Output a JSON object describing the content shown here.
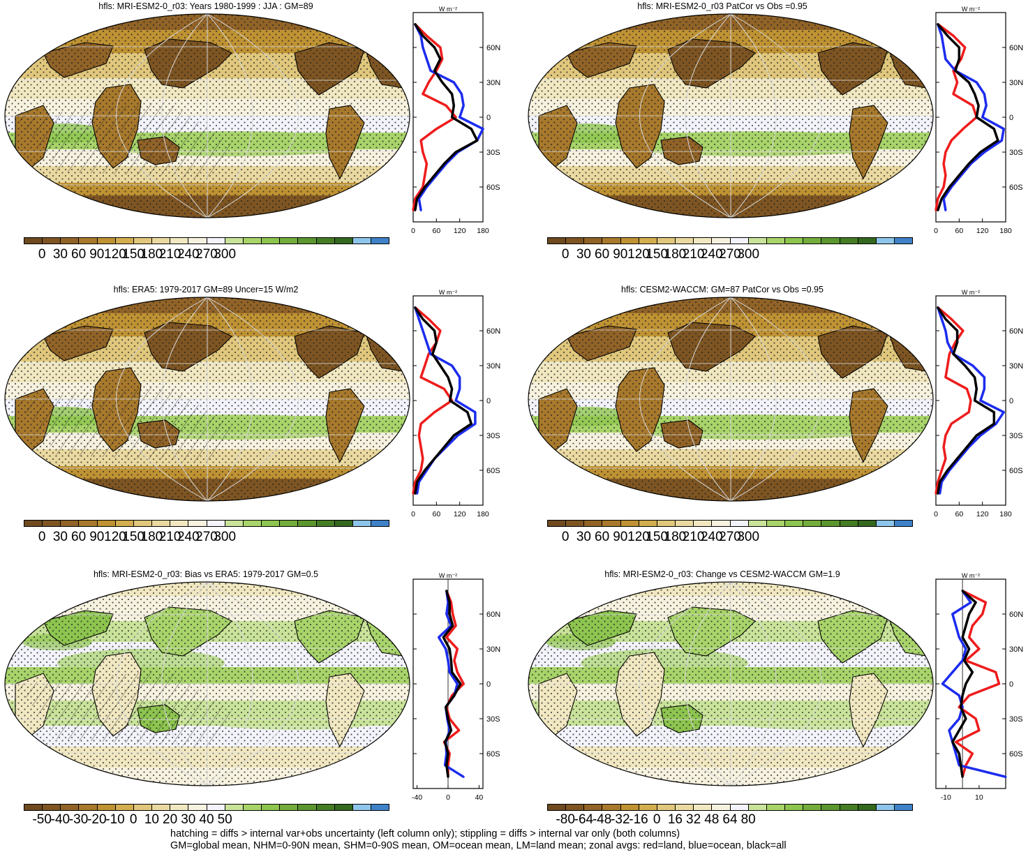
{
  "footer": {
    "line1": "hatching = diffs > internal var+obs uncertainty (left column only); stippling = diffs > internal var only (both columns)",
    "line2": "GM=global mean, NHM=0-90N mean, SHM=0-90S mean, OM=ocean mean, LM=land mean; zonal avgs: red=land, blue=ocean, black=all"
  },
  "colors": {
    "abs_scale": [
      "#6e4a1e",
      "#7e5522",
      "#916327",
      "#a8792c",
      "#bf9233",
      "#d3ae50",
      "#e0c77c",
      "#ead9a0",
      "#f1e8c1",
      "#f7f2df",
      "#f3f3fb",
      "#c9e39a",
      "#a8d46a",
      "#8dc54f",
      "#74ad3c",
      "#5c962f",
      "#457d25",
      "#34681e",
      "#8ec5ea",
      "#3f82c8"
    ],
    "land": "#ee1c1c",
    "ocean": "#1c2cee",
    "all": "#000000"
  },
  "chart_data": [
    {
      "type": "heatmap",
      "title": "hfls: MRI-ESM2-0_r03: Years 1980-1999 : JJA : GM=89",
      "colorbar_ticks": [
        "0",
        "30",
        "60",
        "90",
        "120",
        "150",
        "180",
        "210",
        "240",
        "270",
        "300"
      ],
      "zonal": {
        "unit": "W m⁻²",
        "xticks": [
          "0",
          "60",
          "120",
          "180"
        ],
        "xlim": [
          0,
          180
        ],
        "yticks": [
          "60N",
          "30N",
          "0",
          "30S",
          "60S"
        ],
        "ylim": [
          -90,
          90
        ],
        "lat": [
          80,
          70,
          60,
          50,
          40,
          30,
          20,
          10,
          0,
          -10,
          -20,
          -30,
          -40,
          -50,
          -60,
          -70,
          -80
        ],
        "land": [
          5,
          35,
          70,
          75,
          60,
          40,
          25,
          85,
          110,
          60,
          20,
          25,
          35,
          30,
          25,
          5,
          0
        ],
        "ocean": [
          5,
          20,
          25,
          35,
          45,
          105,
          125,
          130,
          120,
          180,
          165,
          115,
          85,
          60,
          35,
          15,
          20
        ],
        "all": [
          5,
          25,
          55,
          70,
          55,
          75,
          100,
          105,
          100,
          150,
          165,
          110,
          80,
          55,
          30,
          10,
          5
        ]
      }
    },
    {
      "type": "heatmap",
      "title": "hfls: MRI-ESM2-0_r03 PatCor vs Obs =0.95",
      "colorbar_ticks": [
        "0",
        "30",
        "60",
        "90",
        "120",
        "150",
        "180",
        "210",
        "240",
        "270",
        "300"
      ],
      "zonal": {
        "unit": "W m⁻²",
        "xticks": [
          "0",
          "60",
          "120",
          "180"
        ],
        "xlim": [
          0,
          180
        ],
        "yticks": [
          "60N",
          "30N",
          "0",
          "30S",
          "60S"
        ],
        "ylim": [
          -90,
          90
        ],
        "lat": [
          80,
          70,
          60,
          50,
          40,
          30,
          20,
          10,
          0,
          -10,
          -20,
          -30,
          -40,
          -50,
          -60,
          -70,
          -80
        ],
        "land": [
          5,
          45,
          75,
          65,
          45,
          55,
          45,
          95,
          105,
          70,
          40,
          25,
          20,
          25,
          20,
          5,
          0
        ],
        "ocean": [
          5,
          15,
          20,
          25,
          50,
          105,
          125,
          130,
          120,
          175,
          170,
          125,
          90,
          65,
          40,
          20,
          25
        ],
        "all": [
          5,
          30,
          60,
          60,
          50,
          85,
          100,
          110,
          105,
          150,
          160,
          115,
          85,
          60,
          35,
          15,
          5
        ]
      }
    },
    {
      "type": "heatmap",
      "title": "hfls: ERA5: 1979-2017 GM=89 Uncer=15 W/m2",
      "colorbar_ticks": [
        "0",
        "30",
        "60",
        "90",
        "120",
        "150",
        "180",
        "210",
        "240",
        "270",
        "300"
      ],
      "zonal": {
        "unit": "W m⁻²",
        "xticks": [
          "0",
          "60",
          "120",
          "180"
        ],
        "xlim": [
          0,
          180
        ],
        "yticks": [
          "60N",
          "30N",
          "0",
          "30S",
          "60S"
        ],
        "ylim": [
          -90,
          90
        ],
        "lat": [
          80,
          70,
          60,
          50,
          40,
          30,
          20,
          10,
          0,
          -10,
          -20,
          -30,
          -40,
          -50,
          -60,
          -70,
          -80
        ],
        "land": [
          5,
          40,
          70,
          60,
          40,
          30,
          20,
          80,
          100,
          55,
          20,
          15,
          20,
          25,
          20,
          5,
          0
        ],
        "ocean": [
          5,
          15,
          25,
          35,
          45,
          100,
          120,
          120,
          110,
          160,
          160,
          115,
          85,
          55,
          35,
          15,
          10
        ],
        "all": [
          5,
          25,
          55,
          60,
          50,
          70,
          90,
          100,
          95,
          140,
          150,
          105,
          80,
          55,
          30,
          10,
          5
        ]
      }
    },
    {
      "type": "heatmap",
      "title": "hfls: CESM2-WACCM: GM=87 PatCor vs Obs =0.95",
      "colorbar_ticks": [
        "0",
        "30",
        "60",
        "90",
        "120",
        "150",
        "180",
        "210",
        "240",
        "270",
        "300"
      ],
      "zonal": {
        "unit": "W m⁻²",
        "xticks": [
          "0",
          "60",
          "120",
          "180"
        ],
        "xlim": [
          0,
          180
        ],
        "yticks": [
          "60N",
          "30N",
          "0",
          "30S",
          "60S"
        ],
        "ylim": [
          -90,
          90
        ],
        "lat": [
          80,
          70,
          60,
          50,
          40,
          30,
          20,
          10,
          0,
          -10,
          -20,
          -30,
          -40,
          -50,
          -60,
          -70,
          -80
        ],
        "land": [
          5,
          40,
          70,
          50,
          35,
          30,
          25,
          80,
          90,
          85,
          40,
          25,
          20,
          25,
          15,
          5,
          0
        ],
        "ocean": [
          5,
          15,
          25,
          30,
          45,
          95,
          125,
          125,
          115,
          175,
          155,
          115,
          85,
          60,
          35,
          15,
          10
        ],
        "all": [
          5,
          25,
          55,
          55,
          45,
          75,
          100,
          105,
          100,
          150,
          150,
          105,
          80,
          55,
          30,
          10,
          5
        ]
      }
    },
    {
      "type": "heatmap",
      "title": "hfls: MRI-ESM2-0_r03: Bias vs ERA5: 1979-2017 GM=0.5",
      "colorbar_ticks": [
        "-50",
        "-40",
        "-30",
        "-20",
        "-10",
        "0",
        "10",
        "20",
        "30",
        "40",
        "50"
      ],
      "zonal": {
        "unit": "W m⁻²",
        "xticks": [
          "-40",
          "0",
          "40"
        ],
        "xlim": [
          -45,
          45
        ],
        "yticks": [
          "60N",
          "30N",
          "0",
          "30S",
          "60S"
        ],
        "ylim": [
          -90,
          90
        ],
        "lat": [
          80,
          70,
          60,
          50,
          40,
          30,
          20,
          10,
          0,
          -10,
          -20,
          -30,
          -40,
          -50,
          -60,
          -70,
          -80
        ],
        "land": [
          -2,
          4,
          6,
          10,
          -2,
          12,
          8,
          12,
          20,
          5,
          -2,
          2,
          14,
          -5,
          2,
          0,
          0
        ],
        "ocean": [
          -2,
          0,
          -2,
          4,
          -12,
          -3,
          0,
          2,
          12,
          8,
          -3,
          -1,
          2,
          -3,
          -2,
          -4,
          20
        ],
        "all": [
          -2,
          2,
          2,
          6,
          -6,
          2,
          4,
          5,
          16,
          8,
          -3,
          0,
          4,
          -4,
          0,
          -2,
          0
        ]
      }
    },
    {
      "type": "heatmap",
      "title": "hfls: MRI-ESM2-0_r03: Change vs CESM2-WACCM GM=1.9",
      "colorbar_ticks": [
        "-80",
        "-64",
        "-48",
        "-32",
        "-16",
        "0",
        "16",
        "32",
        "48",
        "64",
        "80"
      ],
      "zonal": {
        "unit": "W m⁻²",
        "xticks": [
          "-10",
          "10"
        ],
        "xlim": [
          -16,
          26
        ],
        "yticks": [
          "60N",
          "30N",
          "0",
          "30S",
          "60S"
        ],
        "ylim": [
          -90,
          90
        ],
        "lat": [
          80,
          70,
          60,
          50,
          40,
          30,
          20,
          10,
          0,
          -10,
          -20,
          -30,
          -40,
          -50,
          -60,
          -70,
          -80
        ],
        "land": [
          0,
          14,
          12,
          6,
          4,
          10,
          2,
          20,
          22,
          4,
          -2,
          8,
          10,
          -4,
          6,
          2,
          0
        ],
        "ocean": [
          0,
          5,
          -6,
          -4,
          -2,
          2,
          0,
          -6,
          -12,
          -2,
          0,
          -2,
          -8,
          -6,
          -4,
          -2,
          26
        ],
        "all": [
          0,
          8,
          4,
          2,
          0,
          4,
          1,
          6,
          2,
          0,
          -1,
          2,
          -2,
          -6,
          -2,
          -1,
          0
        ]
      }
    }
  ]
}
